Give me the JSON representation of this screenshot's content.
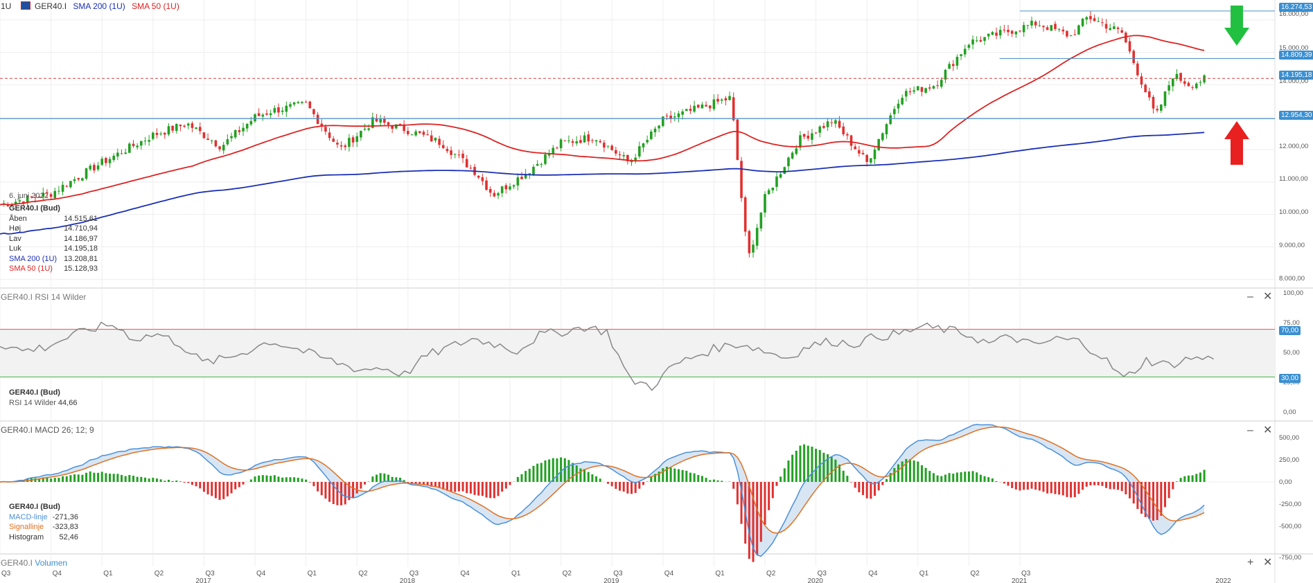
{
  "header": {
    "interval": "1U",
    "symbol": "GER40.I",
    "sma200_label": "SMA 200 (1U)",
    "sma50_label": "SMA 50 (1U)"
  },
  "date_tag": "6. juni 2022",
  "info_panel": {
    "title": "GER40.I (Bud)",
    "rows": [
      {
        "label": "Åben",
        "value": "14.515,61"
      },
      {
        "label": "Høj",
        "value": "14.710,94"
      },
      {
        "label": "Lav",
        "value": "14.186,97"
      },
      {
        "label": "Luk",
        "value": "14.195,18"
      },
      {
        "label": "SMA 200 (1U)",
        "value": "13.208,81"
      },
      {
        "label": "SMA 50 (1U)",
        "value": "15.128,93"
      }
    ]
  },
  "rsi_panel": {
    "title": "GER40.I  RSI 14 Wilder",
    "info_title": "GER40.I (Bud)",
    "info_label": "RSI 14 Wilder",
    "info_value": "44,66",
    "level_high": "70,00",
    "level_low": "30,00"
  },
  "macd_panel": {
    "title": "GER40.I  MACD 26; 12; 9",
    "info_title": "GER40.I (Bud)",
    "rows": [
      {
        "label": "MACD-linje",
        "value": "-271,36"
      },
      {
        "label": "Signallinje",
        "value": "-323,83"
      },
      {
        "label": "Histogram",
        "value": "52,46"
      }
    ]
  },
  "volume_panel": {
    "symbol": "GER40.I",
    "label": "Volumen"
  },
  "price_boxes": [
    {
      "value": "16.274,53",
      "color": "#3a8fd1"
    },
    {
      "value": "14.809,39",
      "color": "#3a8fd1"
    },
    {
      "value": "14.195,18",
      "color": "#3a8fd1"
    },
    {
      "value": "12.954,30",
      "color": "#3a8fd1"
    }
  ],
  "price_ticks": [
    "16.000,00",
    "15.000,00",
    "14.000,00",
    "12.000,00",
    "11.000,00",
    "10.000,00",
    "9.000,00",
    "8.000,00"
  ],
  "rsi_ticks": [
    "100,00",
    "75,00",
    "50,00",
    "25,00",
    "0,00"
  ],
  "macd_ticks": [
    "500,00",
    "250,00",
    "0,00",
    "-250,00",
    "-500,00",
    "-750,00"
  ],
  "x_axis": {
    "quarters": [
      "Q3",
      "Q4",
      "Q1",
      "Q2",
      "Q3",
      "Q4",
      "Q1",
      "Q2",
      "Q3",
      "Q4",
      "Q1",
      "Q2",
      "Q3",
      "Q4",
      "Q1",
      "Q2",
      "Q3",
      "Q4",
      "Q1",
      "Q2",
      "Q3"
    ],
    "years": [
      "2017",
      "2018",
      "2019",
      "2020",
      "2021",
      "2022"
    ]
  },
  "colors": {
    "candle_up": "#22a022",
    "candle_down": "#e03030",
    "sma50": "#dd2222",
    "sma200": "#1a2fb5",
    "rsi_line": "#888888",
    "macd_line": "#4a90d9",
    "signal_line": "#e07020",
    "arrow_down": "#22c040",
    "arrow_up": "#e82020",
    "hline": "#4a90c8"
  },
  "chart_data": [
    {
      "type": "candlestick",
      "title": "GER40.I",
      "interval": "weekly",
      "ylim": [
        8000,
        16400
      ],
      "x_range": [
        "2016-Q3",
        "2022-Q3"
      ],
      "close_series": [
        {
          "date": "2016-07",
          "close": 10300
        },
        {
          "date": "2016-10",
          "close": 10650
        },
        {
          "date": "2017-01",
          "close": 11600
        },
        {
          "date": "2017-04",
          "close": 12450
        },
        {
          "date": "2017-06",
          "close": 12800
        },
        {
          "date": "2017-08",
          "close": 12100
        },
        {
          "date": "2017-10",
          "close": 13000
        },
        {
          "date": "2017-11",
          "close": 13200
        },
        {
          "date": "2018-01",
          "close": 13400
        },
        {
          "date": "2018-03",
          "close": 12000
        },
        {
          "date": "2018-05",
          "close": 12900
        },
        {
          "date": "2018-07",
          "close": 12600
        },
        {
          "date": "2018-09",
          "close": 12200
        },
        {
          "date": "2018-11",
          "close": 11300
        },
        {
          "date": "2018-12",
          "close": 10600
        },
        {
          "date": "2019-02",
          "close": 11300
        },
        {
          "date": "2019-04",
          "close": 12200
        },
        {
          "date": "2019-06",
          "close": 12400
        },
        {
          "date": "2019-08",
          "close": 11600
        },
        {
          "date": "2019-10",
          "close": 12900
        },
        {
          "date": "2019-12",
          "close": 13250
        },
        {
          "date": "2020-02",
          "close": 13600
        },
        {
          "date": "2020-03",
          "close": 8600
        },
        {
          "date": "2020-04",
          "close": 10500
        },
        {
          "date": "2020-06",
          "close": 12300
        },
        {
          "date": "2020-08",
          "close": 12900
        },
        {
          "date": "2020-10",
          "close": 11600
        },
        {
          "date": "2020-12",
          "close": 13700
        },
        {
          "date": "2021-02",
          "close": 14000
        },
        {
          "date": "2021-04",
          "close": 15300
        },
        {
          "date": "2021-06",
          "close": 15600
        },
        {
          "date": "2021-08",
          "close": 15900
        },
        {
          "date": "2021-10",
          "close": 15500
        },
        {
          "date": "2021-11",
          "close": 16100
        },
        {
          "date": "2022-01",
          "close": 15600
        },
        {
          "date": "2022-03",
          "close": 13000
        },
        {
          "date": "2022-04",
          "close": 14300
        },
        {
          "date": "2022-05",
          "close": 14000
        },
        {
          "date": "2022-06",
          "close": 14195
        }
      ],
      "series": [
        {
          "name": "SMA 200 (1U)",
          "last": 13208.81
        },
        {
          "name": "SMA 50 (1U)",
          "last": 15128.93
        }
      ],
      "horizontal_levels": [
        16274.53,
        14809.39,
        14195.18,
        12954.3
      ]
    },
    {
      "type": "line",
      "title": "RSI 14 Wilder",
      "ylim": [
        0,
        100
      ],
      "levels": [
        70,
        30
      ],
      "values_sampled": [
        58,
        52,
        55,
        63,
        70,
        74,
        62,
        66,
        58,
        42,
        45,
        52,
        60,
        55,
        48,
        42,
        36,
        38,
        32,
        48,
        55,
        62,
        58,
        52,
        65,
        68,
        72,
        68,
        28,
        22,
        40,
        48,
        55,
        58,
        52,
        46,
        56,
        60,
        58,
        64,
        66,
        72,
        70,
        66,
        58,
        64,
        56,
        62,
        60,
        48,
        28,
        44,
        40,
        46,
        45
      ]
    },
    {
      "type": "line",
      "title": "MACD 26; 12; 9",
      "ylim": [
        -750,
        650
      ],
      "series": [
        {
          "name": "MACD-linje",
          "last": -271.36
        },
        {
          "name": "Signallinje",
          "last": -323.83
        },
        {
          "name": "Histogram",
          "last": 52.46
        }
      ]
    }
  ]
}
